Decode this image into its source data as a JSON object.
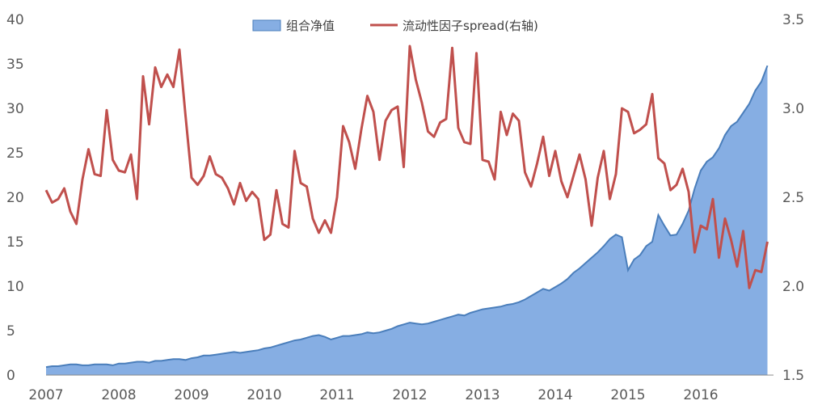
{
  "chart_data": {
    "type": "area+line",
    "title": "",
    "legend": {
      "position": "top-center",
      "items": [
        {
          "label": "组合净值",
          "kind": "area",
          "color": "#86aee3"
        },
        {
          "label": "流动性因子spread(右轴)",
          "kind": "line",
          "color": "#c0504d"
        }
      ]
    },
    "x_axis": {
      "labels": [
        "2007",
        "2008",
        "2009",
        "2010",
        "2011",
        "2012",
        "2013",
        "2014",
        "2015",
        "2016"
      ],
      "range_years": [
        2007.0,
        2017.0
      ]
    },
    "y_left": {
      "range": [
        0,
        40
      ],
      "ticks": [
        "0",
        "5",
        "10",
        "15",
        "20",
        "25",
        "30",
        "35",
        "40"
      ]
    },
    "y_right": {
      "range": [
        1.5,
        3.5
      ],
      "ticks": [
        "1.5",
        "2.0",
        "2.5",
        "3.0",
        "3.5"
      ]
    },
    "grid": false,
    "series": [
      {
        "name": "组合净值",
        "type": "area",
        "axis": "left",
        "color": "#86aee3",
        "edge_color": "#4a7ebb",
        "x_start": 2007.0,
        "x_step": 0.08333,
        "values": [
          0.9,
          1.0,
          1.0,
          1.1,
          1.2,
          1.2,
          1.1,
          1.1,
          1.2,
          1.2,
          1.2,
          1.1,
          1.3,
          1.3,
          1.4,
          1.5,
          1.5,
          1.4,
          1.6,
          1.6,
          1.7,
          1.8,
          1.8,
          1.7,
          1.9,
          2.0,
          2.2,
          2.2,
          2.3,
          2.4,
          2.5,
          2.6,
          2.5,
          2.6,
          2.7,
          2.8,
          3.0,
          3.1,
          3.3,
          3.5,
          3.7,
          3.9,
          4.0,
          4.2,
          4.4,
          4.5,
          4.3,
          4.0,
          4.2,
          4.4,
          4.4,
          4.5,
          4.6,
          4.8,
          4.7,
          4.8,
          5.0,
          5.2,
          5.5,
          5.7,
          5.9,
          5.8,
          5.7,
          5.8,
          6.0,
          6.2,
          6.4,
          6.6,
          6.8,
          6.7,
          7.0,
          7.2,
          7.4,
          7.5,
          7.6,
          7.7,
          7.9,
          8.0,
          8.2,
          8.5,
          8.9,
          9.3,
          9.7,
          9.5,
          9.9,
          10.3,
          10.8,
          11.5,
          12.0,
          12.6,
          13.2,
          13.8,
          14.5,
          15.3,
          15.8,
          15.5,
          11.8,
          13.0,
          13.5,
          14.5,
          15.0,
          18.0,
          16.8,
          15.7,
          15.8,
          17.0,
          18.5,
          21.0,
          23.0,
          24.0,
          24.5,
          25.5,
          27.0,
          28.0,
          28.5,
          29.5,
          30.5,
          32.0,
          33.0,
          34.8
        ]
      },
      {
        "name": "流动性因子spread(右轴)",
        "type": "line",
        "axis": "right",
        "color": "#c0504d",
        "x_start": 2007.0,
        "x_step": 0.08333,
        "values": [
          2.54,
          2.47,
          2.49,
          2.55,
          2.42,
          2.35,
          2.6,
          2.77,
          2.63,
          2.62,
          2.99,
          2.71,
          2.65,
          2.64,
          2.74,
          2.49,
          3.18,
          2.91,
          3.23,
          3.12,
          3.19,
          3.12,
          3.33,
          2.96,
          2.61,
          2.57,
          2.62,
          2.73,
          2.63,
          2.61,
          2.55,
          2.46,
          2.58,
          2.48,
          2.53,
          2.49,
          2.26,
          2.29,
          2.54,
          2.35,
          2.33,
          2.76,
          2.58,
          2.56,
          2.38,
          2.3,
          2.37,
          2.3,
          2.5,
          2.9,
          2.81,
          2.66,
          2.88,
          3.07,
          2.98,
          2.71,
          2.93,
          2.99,
          3.01,
          2.67,
          3.35,
          3.16,
          3.03,
          2.87,
          2.84,
          2.92,
          2.94,
          3.34,
          2.89,
          2.81,
          2.8,
          3.31,
          2.71,
          2.7,
          2.6,
          2.98,
          2.85,
          2.97,
          2.93,
          2.64,
          2.56,
          2.69,
          2.84,
          2.62,
          2.76,
          2.59,
          2.5,
          2.62,
          2.74,
          2.6,
          2.34,
          2.61,
          2.76,
          2.49,
          2.63,
          3.0,
          2.98,
          2.86,
          2.88,
          2.91,
          3.08,
          2.72,
          2.69,
          2.54,
          2.57,
          2.66,
          2.53,
          2.19,
          2.34,
          2.32,
          2.49,
          2.16,
          2.38,
          2.26,
          2.11,
          2.31,
          1.99,
          2.09,
          2.08,
          2.25
        ]
      }
    ]
  }
}
